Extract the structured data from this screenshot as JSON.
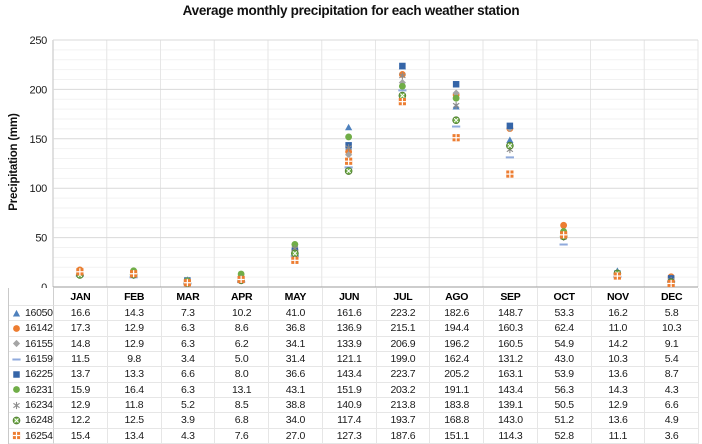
{
  "title": "Average monthly precipitation for each weather station",
  "chart_data": {
    "type": "scatter",
    "title": "Average monthly precipitation for each weather station",
    "ylabel": "Precipitation (mm)",
    "ylim": [
      0,
      250
    ],
    "ytick_step": 50,
    "yminor_step": 10,
    "y_ticks": [
      "0",
      "50",
      "100",
      "150",
      "200",
      "250"
    ],
    "grid": true,
    "legend_position": "data-table-left",
    "categories": [
      "JAN",
      "FEB",
      "MAR",
      "APR",
      "MAY",
      "JUN",
      "JUL",
      "AGO",
      "SEP",
      "OCT",
      "NOV",
      "DEC"
    ],
    "series": [
      {
        "name": "16050",
        "marker": "triangle",
        "color": "#4E81BD",
        "values": [
          16.6,
          14.3,
          7.3,
          10.2,
          41.0,
          161.6,
          223.2,
          182.6,
          148.7,
          53.3,
          16.2,
          5.8
        ]
      },
      {
        "name": "16142",
        "marker": "circle",
        "color": "#ED7D31",
        "values": [
          17.3,
          12.9,
          6.3,
          8.6,
          36.8,
          136.9,
          215.1,
          194.4,
          160.3,
          62.4,
          11.0,
          10.3
        ]
      },
      {
        "name": "16155",
        "marker": "diamond",
        "color": "#A5A5A5",
        "values": [
          14.8,
          12.9,
          6.3,
          6.2,
          34.1,
          133.9,
          206.9,
          196.2,
          160.5,
          54.9,
          14.2,
          9.1
        ]
      },
      {
        "name": "16159",
        "marker": "dash",
        "color": "#8FAADC",
        "values": [
          11.5,
          9.8,
          3.4,
          5.0,
          31.4,
          121.1,
          199.0,
          162.4,
          131.2,
          43.0,
          10.3,
          5.4
        ]
      },
      {
        "name": "16225",
        "marker": "square",
        "color": "#3565A8",
        "values": [
          13.7,
          13.3,
          6.6,
          8.0,
          36.6,
          143.4,
          223.7,
          205.2,
          163.1,
          53.9,
          13.6,
          8.7
        ]
      },
      {
        "name": "16231",
        "marker": "circle",
        "color": "#70AD47",
        "values": [
          15.9,
          16.4,
          6.3,
          13.1,
          43.1,
          151.9,
          203.2,
          191.1,
          143.4,
          56.3,
          14.3,
          4.3
        ]
      },
      {
        "name": "16234",
        "marker": "asterisk",
        "color": "#8C8C8C",
        "values": [
          12.9,
          11.8,
          5.2,
          8.5,
          38.8,
          140.9,
          213.8,
          183.8,
          139.1,
          50.5,
          12.9,
          6.6
        ]
      },
      {
        "name": "16248",
        "marker": "circle-x",
        "color": "#70AD47",
        "values": [
          12.2,
          12.5,
          3.9,
          6.8,
          34.0,
          117.4,
          193.7,
          168.8,
          143.0,
          51.2,
          13.6,
          4.9
        ]
      },
      {
        "name": "16254",
        "marker": "quad-square",
        "color": "#ED7D31",
        "values": [
          15.4,
          13.4,
          4.3,
          7.6,
          27.0,
          127.3,
          187.6,
          151.1,
          114.3,
          52.8,
          11.1,
          3.6
        ]
      }
    ],
    "colors": {
      "axis_line": "#9b9b9b",
      "major_grid": "#d9d9d9",
      "minor_grid": "#f2f2f2",
      "column_grid": "#e6e6e6"
    }
  }
}
